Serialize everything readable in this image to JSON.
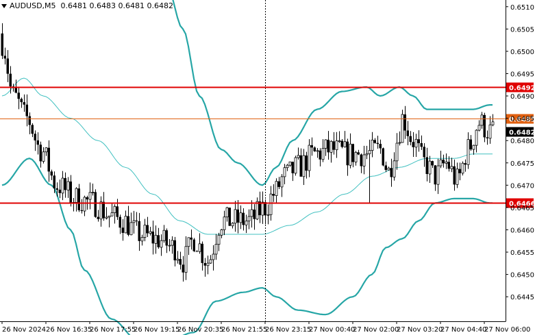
{
  "header": {
    "symbol": "AUDUSD,M5",
    "ohlc": "0.6481 0.6483 0.6481 0.6482"
  },
  "colors": {
    "candle": "#000000",
    "bands": "#26a6a6",
    "middle_band": "#40c0c0",
    "support_resistance": "#e00000",
    "level_orange": "#e06010",
    "price_badge": "#000000"
  },
  "chart_data": {
    "type": "candlestick",
    "title": "AUDUSD,M5",
    "ylim": [
      0.64395,
      0.65115
    ],
    "y_ticks": [
      "0.6510",
      "0.6505",
      "0.6500",
      "0.6495",
      "0.6490",
      "0.6485",
      "0.6480",
      "0.6475",
      "0.6470",
      "0.6465",
      "0.6460",
      "0.6455",
      "0.6450",
      "0.6445"
    ],
    "x_ticks": [
      "26 Nov 2024",
      "26 Nov 16:35",
      "26 Nov 17:55",
      "26 Nov 19:15",
      "26 Nov 20:35",
      "26 Nov 21:55",
      "26 Nov 23:15",
      "27 Nov 00:40",
      "27 Nov 02:00",
      "27 Nov 03:20",
      "27 Nov 04:40",
      "27 Nov 06:00"
    ],
    "levels": [
      {
        "value": 0.6492,
        "label": "0.6492",
        "style": "red"
      },
      {
        "value": 0.6485,
        "label": "0.6485",
        "style": "orange"
      },
      {
        "value": 0.6466,
        "label": "0.6466",
        "style": "red"
      }
    ],
    "current_price": {
      "value": 0.6482,
      "label": "0.6482"
    },
    "crosshair_at": "26 Nov 23:15",
    "close_anchors": [
      [
        0,
        0.6502
      ],
      [
        4,
        0.649
      ],
      [
        9,
        0.6485
      ],
      [
        14,
        0.6478
      ],
      [
        20,
        0.647
      ],
      [
        27,
        0.6467
      ],
      [
        33,
        0.6466
      ],
      [
        40,
        0.6463
      ],
      [
        44,
        0.6462
      ],
      [
        50,
        0.6459
      ],
      [
        56,
        0.6458
      ],
      [
        63,
        0.6456
      ],
      [
        66,
        0.6453
      ],
      [
        70,
        0.6458
      ],
      [
        75,
        0.6453
      ],
      [
        80,
        0.6462
      ],
      [
        86,
        0.6462
      ],
      [
        90,
        0.6462
      ],
      [
        96,
        0.6465
      ],
      [
        99,
        0.6468
      ],
      [
        103,
        0.6472
      ],
      [
        108,
        0.6474
      ],
      [
        114,
        0.6477
      ],
      [
        120,
        0.6478
      ],
      [
        126,
        0.6477
      ],
      [
        133,
        0.6477
      ],
      [
        138,
        0.6478
      ],
      [
        141,
        0.6473
      ],
      [
        144,
        0.648
      ],
      [
        146,
        0.6485
      ],
      [
        150,
        0.648
      ],
      [
        154,
        0.6475
      ],
      [
        158,
        0.6472
      ],
      [
        162,
        0.6475
      ],
      [
        166,
        0.6471
      ],
      [
        170,
        0.6478
      ],
      [
        174,
        0.6484
      ],
      [
        178,
        0.6482
      ]
    ],
    "upper_anchors": [
      [
        60,
        0.6515
      ],
      [
        66,
        0.6505
      ],
      [
        72,
        0.649
      ],
      [
        80,
        0.6478
      ],
      [
        86,
        0.6475
      ],
      [
        95,
        0.647
      ],
      [
        100,
        0.6474
      ],
      [
        106,
        0.648
      ],
      [
        115,
        0.6487
      ],
      [
        124,
        0.6491
      ],
      [
        133,
        0.6492
      ],
      [
        138,
        0.649
      ],
      [
        145,
        0.6492
      ],
      [
        150,
        0.649
      ],
      [
        155,
        0.6487
      ],
      [
        160,
        0.6487
      ],
      [
        166,
        0.6487
      ],
      [
        172,
        0.6487
      ],
      [
        178,
        0.6488
      ]
    ],
    "middle_anchors": [
      [
        0,
        0.649
      ],
      [
        8,
        0.6494
      ],
      [
        15,
        0.649
      ],
      [
        25,
        0.6485
      ],
      [
        35,
        0.648
      ],
      [
        45,
        0.6474
      ],
      [
        55,
        0.6468
      ],
      [
        65,
        0.6462
      ],
      [
        75,
        0.6459
      ],
      [
        85,
        0.6459
      ],
      [
        95,
        0.6459
      ],
      [
        105,
        0.6461
      ],
      [
        115,
        0.6464
      ],
      [
        125,
        0.6468
      ],
      [
        135,
        0.6472
      ],
      [
        145,
        0.6474
      ],
      [
        155,
        0.6476
      ],
      [
        165,
        0.6476
      ],
      [
        172,
        0.6477
      ],
      [
        178,
        0.6477
      ]
    ],
    "lower_anchors": [
      [
        0,
        0.647
      ],
      [
        10,
        0.6476
      ],
      [
        18,
        0.647
      ],
      [
        25,
        0.646
      ],
      [
        30,
        0.6451
      ],
      [
        40,
        0.644
      ],
      [
        50,
        0.6435
      ],
      [
        60,
        0.6435
      ],
      [
        70,
        0.6437
      ],
      [
        78,
        0.6444
      ],
      [
        88,
        0.6446
      ],
      [
        95,
        0.6447
      ],
      [
        100,
        0.6445
      ],
      [
        108,
        0.6442
      ],
      [
        118,
        0.6441
      ],
      [
        128,
        0.6445
      ],
      [
        135,
        0.645
      ],
      [
        140,
        0.6456
      ],
      [
        146,
        0.6458
      ],
      [
        152,
        0.6462
      ],
      [
        158,
        0.6466
      ],
      [
        165,
        0.6467
      ],
      [
        172,
        0.6467
      ],
      [
        178,
        0.6466
      ]
    ]
  }
}
